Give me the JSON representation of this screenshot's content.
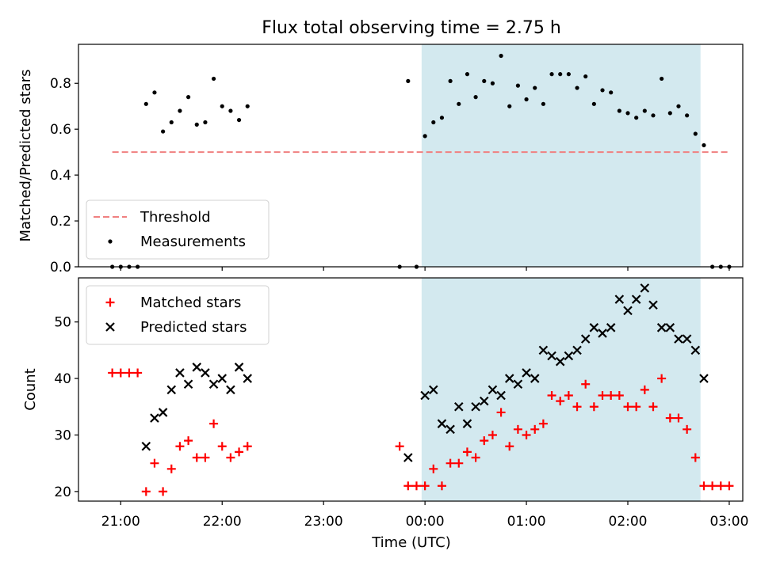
{
  "chart_data": {
    "type": "scatter",
    "title": "Flux total observing time = 2.75 h",
    "xlabel": "Time (UTC)",
    "x_unit": "hours (UTC, 00:00 = 24)",
    "xlim": [
      "20:35",
      "03:08"
    ],
    "x_ticks": [
      "21:00",
      "22:00",
      "23:00",
      "00:00",
      "01:00",
      "02:00",
      "03:00"
    ],
    "shaded_interval": [
      "23:58",
      "02:43"
    ],
    "shade_color": "#d3e9ef",
    "panels": [
      {
        "id": "ratio",
        "ylabel": "Matched/Predicted stars",
        "ylim": [
          0,
          0.97
        ],
        "y_ticks": [
          "0.0",
          "0.2",
          "0.4",
          "0.6",
          "0.8"
        ],
        "legend_position": "lower-left",
        "threshold": {
          "name": "Threshold",
          "y": 0.5,
          "x_range": [
            "20:55",
            "03:00"
          ],
          "color": "#f08080",
          "style": "dashed"
        },
        "series": [
          {
            "name": "Measurements",
            "marker": "dot",
            "color": "#000000",
            "points": [
              [
                "20:55",
                0
              ],
              [
                "21:00",
                0
              ],
              [
                "21:05",
                0
              ],
              [
                "21:10",
                0
              ],
              [
                "21:15",
                0.71
              ],
              [
                "21:20",
                0.76
              ],
              [
                "21:25",
                0.59
              ],
              [
                "21:30",
                0.63
              ],
              [
                "21:35",
                0.68
              ],
              [
                "21:40",
                0.74
              ],
              [
                "21:45",
                0.62
              ],
              [
                "21:50",
                0.63
              ],
              [
                "21:55",
                0.82
              ],
              [
                "22:00",
                0.7
              ],
              [
                "22:05",
                0.68
              ],
              [
                "22:10",
                0.64
              ],
              [
                "22:15",
                0.7
              ],
              [
                "23:45",
                0
              ],
              [
                "23:50",
                0.81
              ],
              [
                "23:55",
                0
              ],
              [
                "00:00",
                0.57
              ],
              [
                "00:05",
                0.63
              ],
              [
                "00:10",
                0.65
              ],
              [
                "00:15",
                0.81
              ],
              [
                "00:20",
                0.71
              ],
              [
                "00:25",
                0.84
              ],
              [
                "00:30",
                0.74
              ],
              [
                "00:35",
                0.81
              ],
              [
                "00:40",
                0.8
              ],
              [
                "00:45",
                0.92
              ],
              [
                "00:50",
                0.7
              ],
              [
                "00:55",
                0.79
              ],
              [
                "01:00",
                0.73
              ],
              [
                "01:05",
                0.78
              ],
              [
                "01:10",
                0.71
              ],
              [
                "01:15",
                0.84
              ],
              [
                "01:20",
                0.84
              ],
              [
                "01:25",
                0.84
              ],
              [
                "01:30",
                0.78
              ],
              [
                "01:35",
                0.83
              ],
              [
                "01:40",
                0.71
              ],
              [
                "01:45",
                0.77
              ],
              [
                "01:50",
                0.76
              ],
              [
                "01:55",
                0.68
              ],
              [
                "02:00",
                0.67
              ],
              [
                "02:05",
                0.65
              ],
              [
                "02:10",
                0.68
              ],
              [
                "02:15",
                0.66
              ],
              [
                "02:20",
                0.82
              ],
              [
                "02:25",
                0.67
              ],
              [
                "02:30",
                0.7
              ],
              [
                "02:35",
                0.66
              ],
              [
                "02:40",
                0.58
              ],
              [
                "02:45",
                0.53
              ],
              [
                "02:50",
                0
              ],
              [
                "02:55",
                0
              ],
              [
                "03:00",
                0
              ]
            ]
          }
        ]
      },
      {
        "id": "count",
        "ylabel": "Count",
        "ylim": [
          18.3,
          57.8
        ],
        "y_ticks": [
          "20",
          "30",
          "40",
          "50"
        ],
        "legend_position": "upper-left",
        "series": [
          {
            "name": "Matched stars",
            "marker": "plus",
            "color": "#ff0000",
            "points": [
              [
                "20:55",
                41
              ],
              [
                "21:00",
                41
              ],
              [
                "21:05",
                41
              ],
              [
                "21:10",
                41
              ],
              [
                "21:15",
                20
              ],
              [
                "21:20",
                25
              ],
              [
                "21:25",
                20
              ],
              [
                "21:30",
                24
              ],
              [
                "21:35",
                28
              ],
              [
                "21:40",
                29
              ],
              [
                "21:45",
                26
              ],
              [
                "21:50",
                26
              ],
              [
                "21:55",
                32
              ],
              [
                "22:00",
                28
              ],
              [
                "22:05",
                26
              ],
              [
                "22:10",
                27
              ],
              [
                "22:15",
                28
              ],
              [
                "23:45",
                28
              ],
              [
                "23:50",
                21
              ],
              [
                "23:55",
                21
              ],
              [
                "00:00",
                21
              ],
              [
                "00:05",
                24
              ],
              [
                "00:10",
                21
              ],
              [
                "00:15",
                25
              ],
              [
                "00:20",
                25
              ],
              [
                "00:25",
                27
              ],
              [
                "00:30",
                26
              ],
              [
                "00:35",
                29
              ],
              [
                "00:40",
                30
              ],
              [
                "00:45",
                34
              ],
              [
                "00:50",
                28
              ],
              [
                "00:55",
                31
              ],
              [
                "01:00",
                30
              ],
              [
                "01:05",
                31
              ],
              [
                "01:10",
                32
              ],
              [
                "01:15",
                37
              ],
              [
                "01:20",
                36
              ],
              [
                "01:25",
                37
              ],
              [
                "01:30",
                35
              ],
              [
                "01:35",
                39
              ],
              [
                "01:40",
                35
              ],
              [
                "01:45",
                37
              ],
              [
                "01:50",
                37
              ],
              [
                "01:55",
                37
              ],
              [
                "02:00",
                35
              ],
              [
                "02:05",
                35
              ],
              [
                "02:10",
                38
              ],
              [
                "02:15",
                35
              ],
              [
                "02:20",
                40
              ],
              [
                "02:25",
                33
              ],
              [
                "02:30",
                33
              ],
              [
                "02:35",
                31
              ],
              [
                "02:40",
                26
              ],
              [
                "02:45",
                21
              ],
              [
                "02:50",
                21
              ],
              [
                "02:55",
                21
              ],
              [
                "03:00",
                21
              ]
            ]
          },
          {
            "name": "Predicted stars",
            "marker": "x",
            "color": "#000000",
            "points": [
              [
                "21:15",
                28
              ],
              [
                "21:20",
                33
              ],
              [
                "21:25",
                34
              ],
              [
                "21:30",
                38
              ],
              [
                "21:35",
                41
              ],
              [
                "21:40",
                39
              ],
              [
                "21:45",
                42
              ],
              [
                "21:50",
                41
              ],
              [
                "21:55",
                39
              ],
              [
                "22:00",
                40
              ],
              [
                "22:05",
                38
              ],
              [
                "22:10",
                42
              ],
              [
                "22:15",
                40
              ],
              [
                "23:50",
                26
              ],
              [
                "00:00",
                37
              ],
              [
                "00:05",
                38
              ],
              [
                "00:10",
                32
              ],
              [
                "00:15",
                31
              ],
              [
                "00:20",
                35
              ],
              [
                "00:25",
                32
              ],
              [
                "00:30",
                35
              ],
              [
                "00:35",
                36
              ],
              [
                "00:40",
                38
              ],
              [
                "00:45",
                37
              ],
              [
                "00:50",
                40
              ],
              [
                "00:55",
                39
              ],
              [
                "01:00",
                41
              ],
              [
                "01:05",
                40
              ],
              [
                "01:10",
                45
              ],
              [
                "01:15",
                44
              ],
              [
                "01:20",
                43
              ],
              [
                "01:25",
                44
              ],
              [
                "01:30",
                45
              ],
              [
                "01:35",
                47
              ],
              [
                "01:40",
                49
              ],
              [
                "01:45",
                48
              ],
              [
                "01:50",
                49
              ],
              [
                "01:55",
                54
              ],
              [
                "02:00",
                52
              ],
              [
                "02:05",
                54
              ],
              [
                "02:10",
                56
              ],
              [
                "02:15",
                53
              ],
              [
                "02:20",
                49
              ],
              [
                "02:25",
                49
              ],
              [
                "02:30",
                47
              ],
              [
                "02:35",
                47
              ],
              [
                "02:40",
                45
              ],
              [
                "02:45",
                40
              ]
            ]
          }
        ]
      }
    ]
  }
}
